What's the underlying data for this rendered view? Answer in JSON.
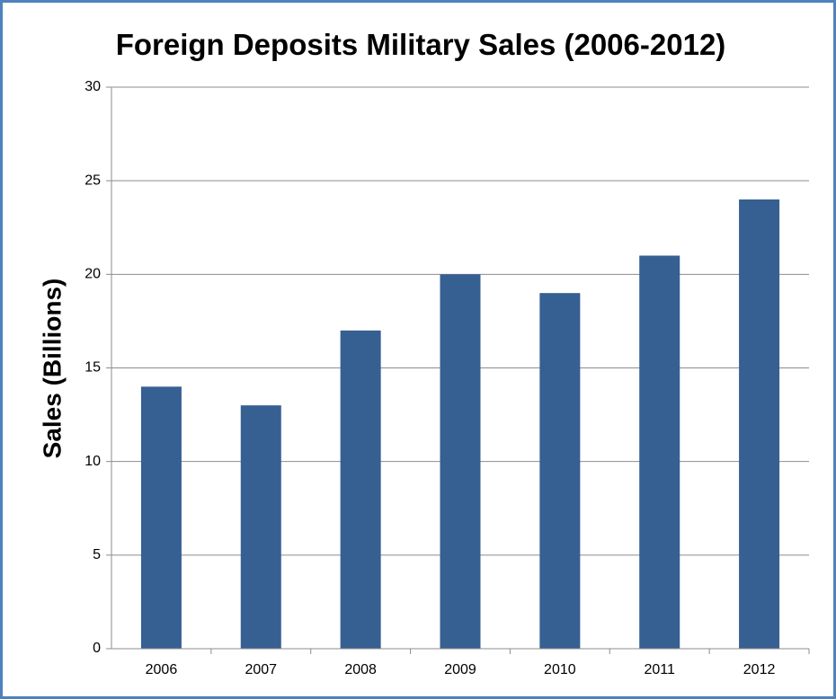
{
  "chart_data": {
    "type": "bar",
    "title": "Foreign Deposits Military Sales (2006-2012)",
    "xlabel": "",
    "ylabel": "Sales (Billions)",
    "categories": [
      "2006",
      "2007",
      "2008",
      "2009",
      "2010",
      "2011",
      "2012"
    ],
    "values": [
      14,
      13,
      17,
      20,
      19,
      21,
      24
    ],
    "ylim": [
      0,
      30
    ],
    "yticks": [
      0,
      5,
      10,
      15,
      20,
      25,
      30
    ],
    "grid": true,
    "legend": "none",
    "bar_color": "#366092",
    "frame_color": "#4f81bd",
    "grid_color": "#8c8c8c"
  }
}
